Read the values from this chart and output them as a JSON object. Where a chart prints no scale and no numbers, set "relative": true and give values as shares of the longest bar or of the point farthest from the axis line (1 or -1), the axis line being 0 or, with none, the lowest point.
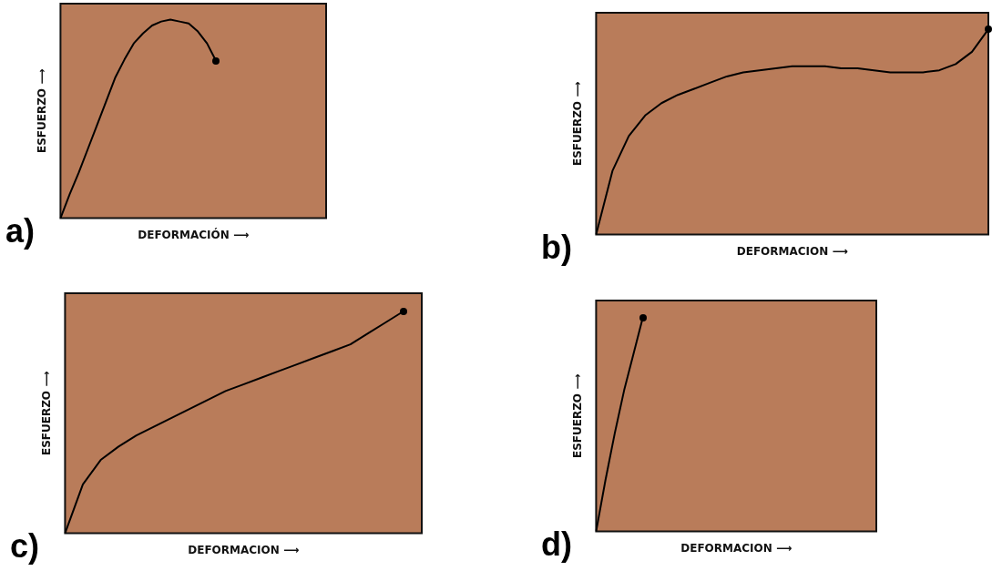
{
  "chart_data": [
    {
      "type": "line",
      "relative": true,
      "xlabel": "DEFORMACIÓN ⟶",
      "ylabel": "ESFUERZO ⟶",
      "annotations": [
        "a)"
      ],
      "grid": false,
      "legend": false,
      "categories": [
        null,
        null,
        null,
        null,
        null,
        null,
        null,
        null,
        null,
        null,
        null,
        null,
        null,
        null,
        null,
        null,
        null,
        null,
        null,
        null,
        null,
        null,
        null,
        null,
        null,
        null,
        null,
        null,
        null,
        null
      ],
      "series": [
        {
          "color": "#000000",
          "values": [
            0,
            0.12,
            0.23,
            0.35,
            0.47,
            0.59,
            0.71,
            0.8,
            0.88,
            0.93,
            0.97,
            0.99,
            1.0,
            0.99,
            0.98,
            0.94,
            0.88,
            0.79,
            null,
            null,
            null,
            null,
            null,
            null,
            null,
            null,
            null,
            null,
            null,
            null
          ]
        }
      ]
    },
    {
      "type": "line",
      "relative": true,
      "xlabel": "DEFORMACION ⟶",
      "ylabel": "ESFUERZO ⟶",
      "annotations": [
        "b)"
      ],
      "grid": false,
      "legend": false,
      "categories": [
        null,
        null,
        null,
        null,
        null,
        null,
        null,
        null,
        null,
        null,
        null,
        null,
        null,
        null,
        null,
        null,
        null,
        null,
        null,
        null,
        null,
        null,
        null,
        null,
        null
      ],
      "series": [
        {
          "color": "#000000",
          "values": [
            0,
            0.31,
            0.48,
            0.58,
            0.64,
            0.68,
            0.71,
            0.74,
            0.77,
            0.79,
            0.8,
            0.81,
            0.82,
            0.82,
            0.82,
            0.81,
            0.81,
            0.8,
            0.79,
            0.79,
            0.79,
            0.8,
            0.83,
            0.89,
            1.0
          ]
        }
      ]
    },
    {
      "type": "line",
      "relative": true,
      "xlabel": "DEFORMACION ⟶",
      "ylabel": "ESFUERZO ⟶",
      "annotations": [
        "c)"
      ],
      "grid": false,
      "legend": false,
      "categories": [
        null,
        null,
        null,
        null,
        null,
        null,
        null,
        null,
        null,
        null,
        null,
        null,
        null,
        null,
        null,
        null,
        null,
        null,
        null,
        null,
        null
      ],
      "series": [
        {
          "color": "#000000",
          "values": [
            0,
            0.22,
            0.33,
            0.39,
            0.44,
            0.48,
            0.52,
            0.56,
            0.6,
            0.64,
            0.67,
            0.7,
            0.73,
            0.76,
            0.79,
            0.82,
            0.85,
            0.9,
            0.95,
            1.0,
            null
          ]
        }
      ]
    },
    {
      "type": "line",
      "relative": true,
      "xlabel": "DEFORMACION ⟶",
      "ylabel": "ESFUERZO ⟶",
      "annotations": [
        "d)"
      ],
      "grid": false,
      "legend": false,
      "categories": [
        null,
        null,
        null,
        null,
        null,
        null,
        null,
        null,
        null,
        null,
        null,
        null,
        null,
        null,
        null,
        null,
        null,
        null,
        null,
        null,
        null,
        null,
        null,
        null,
        null,
        null,
        null,
        null,
        null,
        null,
        null
      ],
      "series": [
        {
          "color": "#000000",
          "values": [
            0,
            0.24,
            0.46,
            0.66,
            0.83,
            1.0,
            null,
            null,
            null,
            null,
            null,
            null,
            null,
            null,
            null,
            null,
            null,
            null,
            null,
            null,
            null,
            null,
            null,
            null,
            null,
            null,
            null,
            null,
            null,
            null,
            null
          ]
        }
      ]
    }
  ]
}
